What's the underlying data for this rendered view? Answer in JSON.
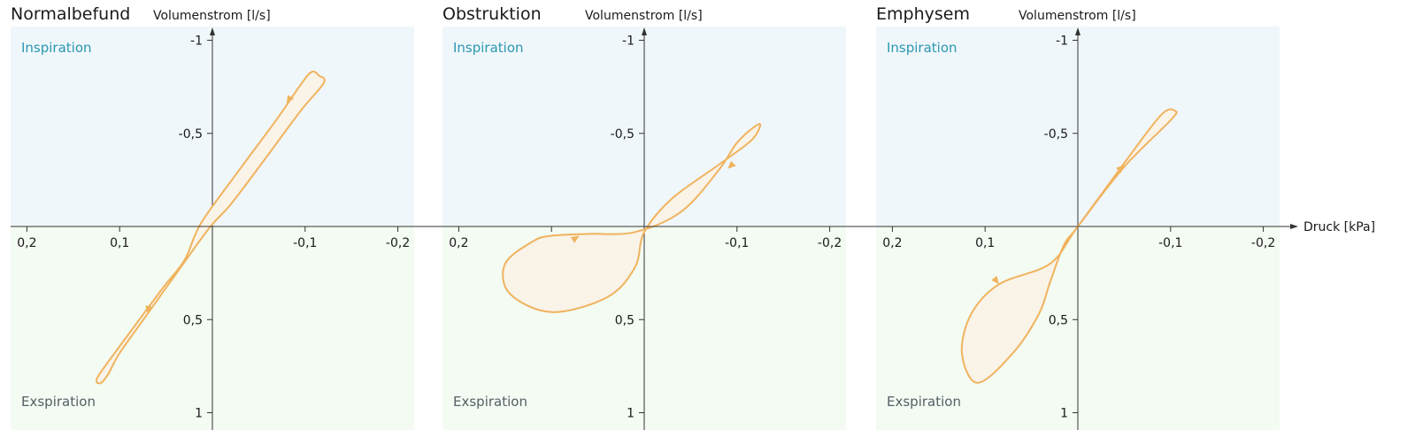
{
  "chart_data": {
    "type": "line",
    "x_axis": {
      "label": "Druck [kPa]",
      "ticks": [
        0.2,
        0.1,
        -0.1,
        -0.2
      ],
      "tick_labels": [
        "0,2",
        "0,1",
        "-0,1",
        "-0,2"
      ],
      "range": [
        0.22,
        -0.22
      ],
      "direction": "reversed"
    },
    "y_axis": {
      "label": "Volumenstrom [l/s]",
      "ticks": [
        -1,
        -0.5,
        0.5,
        1
      ],
      "tick_labels": [
        "-1",
        "-0,5",
        "0,5",
        "1"
      ],
      "range": [
        -1.08,
        1.08
      ],
      "direction": "negative-up"
    },
    "regions": [
      {
        "name": "Inspiration",
        "flow_range": [
          -1.08,
          0
        ],
        "fill": "#f0f7fb",
        "label_color": "#2b97b0"
      },
      {
        "name": "Exspiration",
        "flow_range": [
          0,
          1.08
        ],
        "fill": "#f3fbf2",
        "label_color": "#555f66"
      }
    ],
    "loop_color": "#f0b35e",
    "loop_fill": "#f9f3e8",
    "panels": [
      {
        "title": "Normalbefund",
        "inspiration_label": "Inspiration",
        "exspiration_label": "Exspiration",
        "loop": {
          "path": [
            [
              0.012,
              -0.02
            ],
            [
              -0.03,
              -0.31
            ],
            [
              -0.07,
              -0.58
            ],
            [
              -0.095,
              -0.76
            ],
            [
              -0.107,
              -0.83
            ],
            [
              -0.115,
              -0.81
            ],
            [
              -0.12,
              -0.77
            ],
            [
              -0.095,
              -0.62
            ],
            [
              -0.055,
              -0.35
            ],
            [
              -0.02,
              -0.12
            ],
            [
              0.002,
              0
            ],
            [
              0.03,
              0.19
            ],
            [
              0.07,
              0.47
            ],
            [
              0.1,
              0.68
            ],
            [
              0.112,
              0.79
            ],
            [
              0.12,
              0.84
            ],
            [
              0.125,
              0.83
            ],
            [
              0.12,
              0.78
            ],
            [
              0.095,
              0.61
            ],
            [
              0.055,
              0.34
            ],
            [
              0.03,
              0.18
            ],
            [
              0.012,
              -0.02
            ]
          ],
          "arrows": [
            [
              -0.08,
              -0.66
            ],
            [
              -0.065,
              -0.54
            ],
            [
              0.07,
              0.47
            ],
            [
              0.075,
              0.6
            ]
          ]
        }
      },
      {
        "title": "Obstruktion",
        "inspiration_label": "Inspiration",
        "exspiration_label": "Exspiration",
        "loop": {
          "path": [
            [
              0.1,
              0.05
            ],
            [
              0.06,
              0.04
            ],
            [
              0.01,
              0.03
            ],
            [
              -0.04,
              -0.08
            ],
            [
              -0.08,
              -0.3
            ],
            [
              -0.1,
              -0.45
            ],
            [
              -0.12,
              -0.54
            ],
            [
              -0.125,
              -0.54
            ],
            [
              -0.115,
              -0.46
            ],
            [
              -0.08,
              -0.33
            ],
            [
              -0.03,
              -0.15
            ],
            [
              0,
              0.03
            ],
            [
              0.01,
              0.22
            ],
            [
              0.04,
              0.38
            ],
            [
              0.1,
              0.46
            ],
            [
              0.145,
              0.36
            ],
            [
              0.15,
              0.2
            ],
            [
              0.12,
              0.08
            ],
            [
              0.1,
              0.05
            ]
          ],
          "arrows": [
            [
              0.07,
              0.05
            ],
            [
              -0.06,
              -0.36
            ],
            [
              -0.09,
              -0.31
            ],
            [
              0.05,
              0.35
            ]
          ]
        }
      },
      {
        "title": "Emphysem",
        "inspiration_label": "Inspiration",
        "exspiration_label": "Exspiration",
        "loop": {
          "path": [
            [
              0,
              0
            ],
            [
              -0.05,
              -0.34
            ],
            [
              -0.09,
              -0.6
            ],
            [
              -0.105,
              -0.62
            ],
            [
              -0.1,
              -0.57
            ],
            [
              -0.05,
              -0.32
            ],
            [
              0,
              0
            ],
            [
              0.03,
              0.2
            ],
            [
              0.085,
              0.31
            ],
            [
              0.115,
              0.47
            ],
            [
              0.125,
              0.68
            ],
            [
              0.108,
              0.84
            ],
            [
              0.07,
              0.68
            ],
            [
              0.042,
              0.47
            ],
            [
              0.03,
              0.3
            ],
            [
              0.015,
              0.1
            ],
            [
              0,
              0
            ]
          ],
          "arrows": [
            [
              -0.05,
              -0.33
            ],
            [
              -0.093,
              -0.53
            ],
            [
              0.085,
              0.31
            ],
            [
              0.045,
              0.56
            ]
          ]
        }
      }
    ]
  }
}
